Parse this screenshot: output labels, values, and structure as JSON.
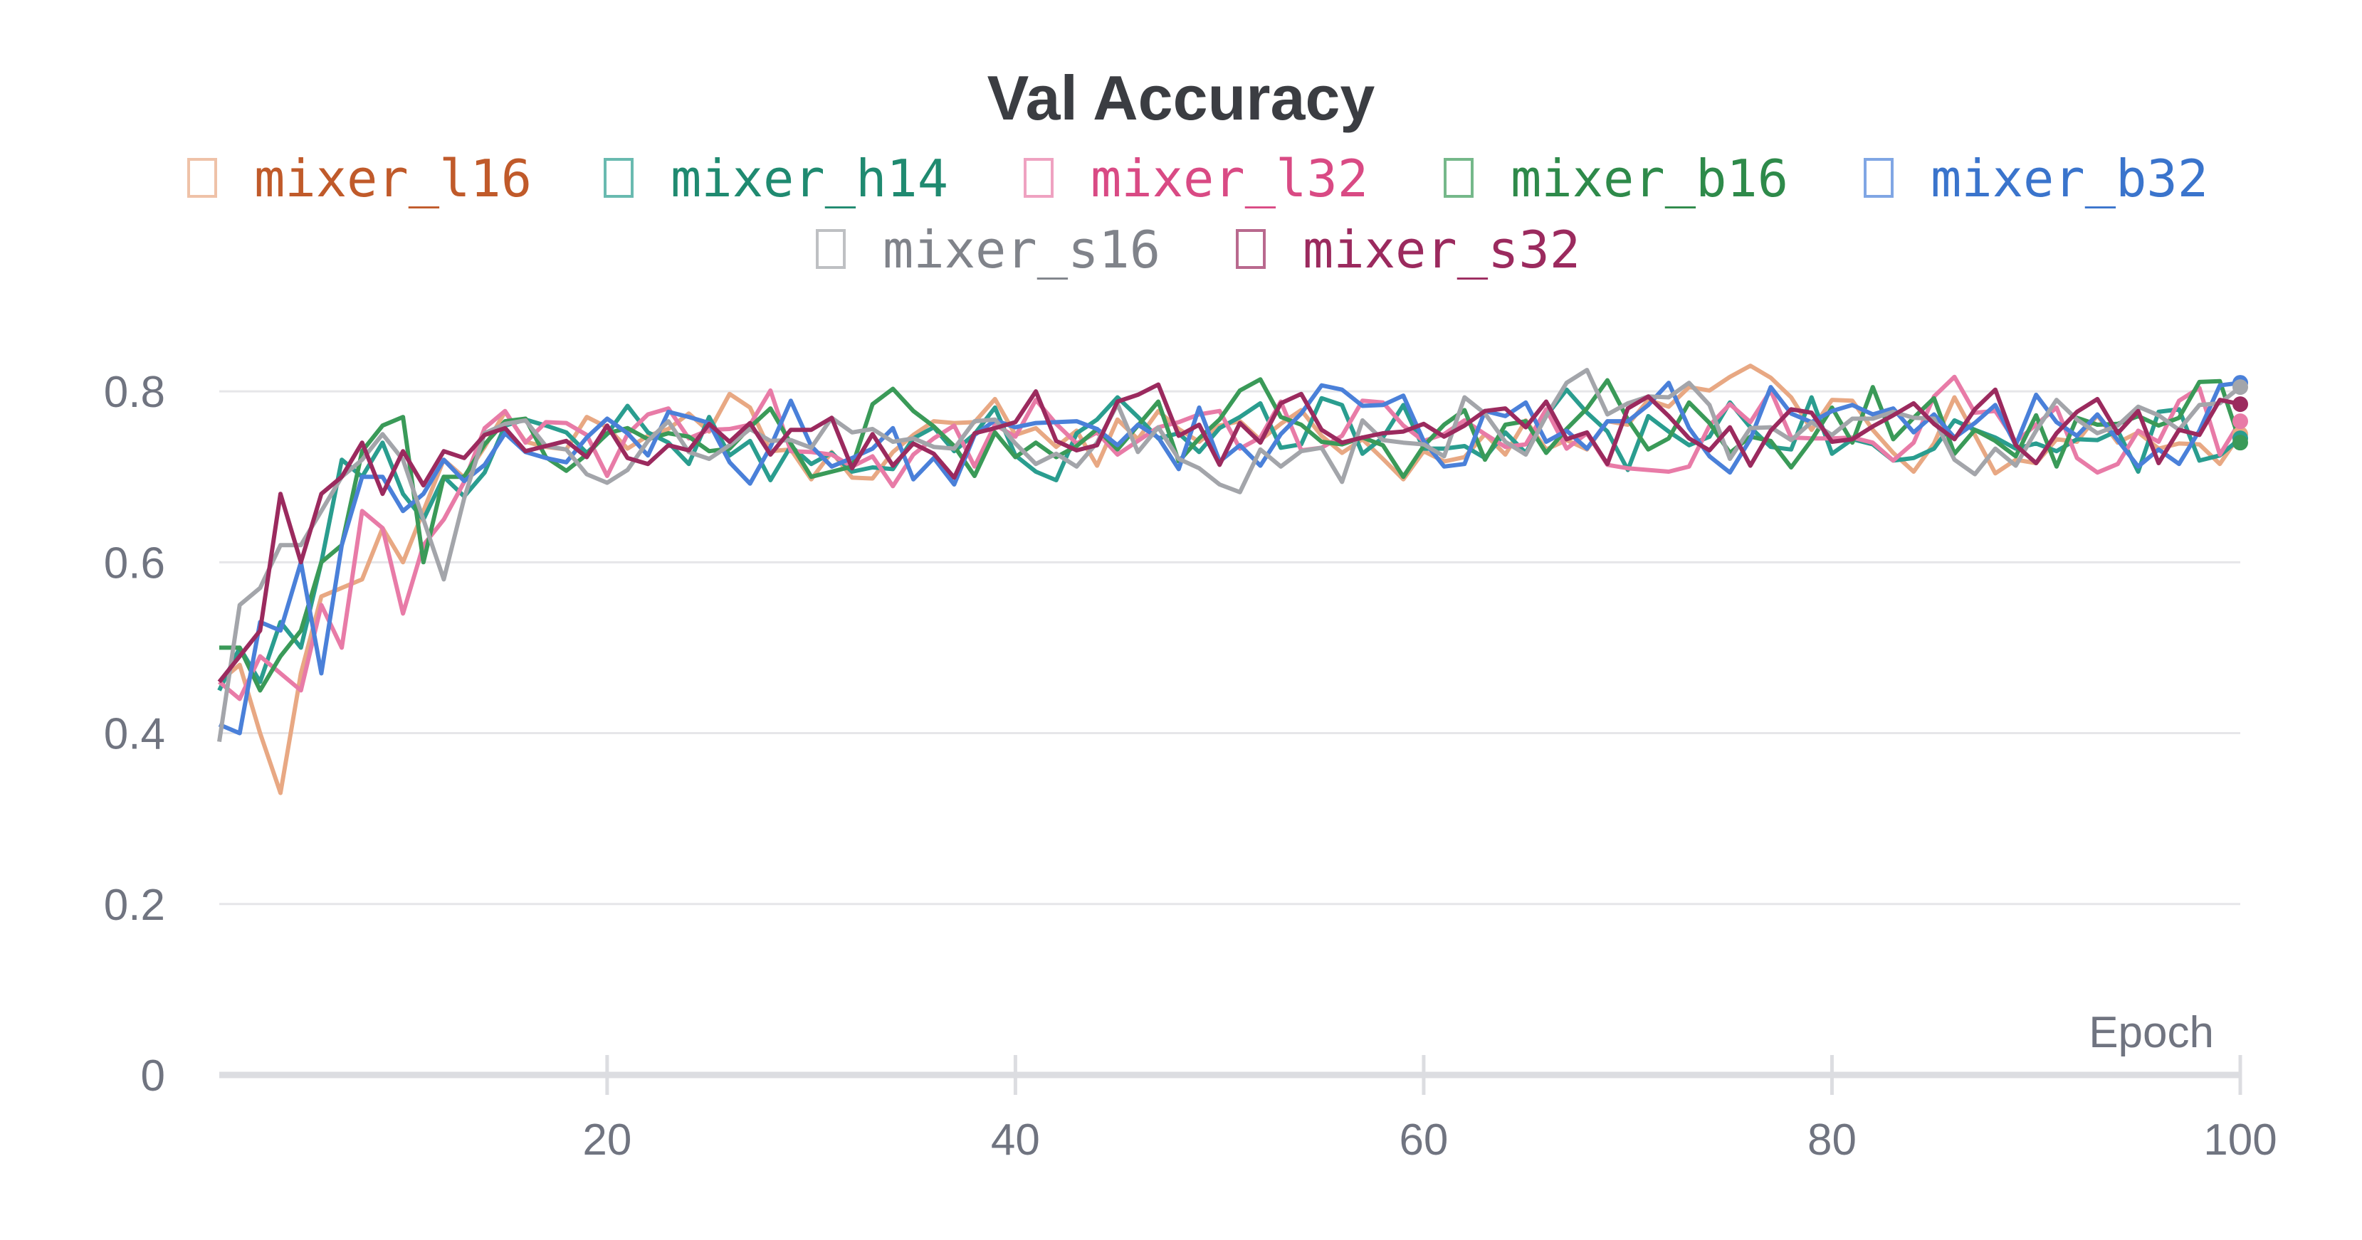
{
  "chart_data": {
    "type": "line",
    "title": "Val Accuracy",
    "xlabel": "Epoch",
    "ylabel": "",
    "xlim": [
      1,
      100
    ],
    "ylim": [
      0,
      0.9
    ],
    "x_ticks": [
      20,
      40,
      60,
      80,
      100
    ],
    "y_ticks": [
      0,
      0.2,
      0.4,
      0.6,
      0.8
    ],
    "y_tick_labels": [
      "0",
      "0.2",
      "0.4",
      "0.6",
      "0.8"
    ],
    "grid": true,
    "legend_position": "top",
    "series": [
      {
        "name": "mixer_l16",
        "color": "#e8a883",
        "text_color": "#c05a2a",
        "start": [
          0.46,
          0.48,
          0.4,
          0.33,
          0.47,
          0.56,
          0.57,
          0.58,
          0.64,
          0.6,
          0.66,
          0.72
        ],
        "final": 0.75
      },
      {
        "name": "mixer_h14",
        "color": "#2a9d8f",
        "text_color": "#1f8a70",
        "start": [
          0.45,
          0.5,
          0.46,
          0.53,
          0.5,
          0.6,
          0.72,
          0.7,
          0.74,
          0.68,
          0.65,
          0.7
        ],
        "final": 0.745
      },
      {
        "name": "mixer_l32",
        "color": "#e87ba7",
        "text_color": "#d94a84",
        "start": [
          0.46,
          0.44,
          0.49,
          0.47,
          0.45,
          0.55,
          0.5,
          0.66,
          0.64,
          0.54,
          0.62,
          0.65
        ],
        "final": 0.765
      },
      {
        "name": "mixer_b16",
        "color": "#3a9a58",
        "text_color": "#2e8a4a",
        "start": [
          0.5,
          0.5,
          0.45,
          0.49,
          0.52,
          0.6,
          0.62,
          0.73,
          0.76,
          0.77,
          0.6,
          0.7
        ],
        "final": 0.74
      },
      {
        "name": "mixer_b32",
        "color": "#4a80d9",
        "text_color": "#3a74cc",
        "start": [
          0.41,
          0.4,
          0.53,
          0.52,
          0.6,
          0.47,
          0.62,
          0.7,
          0.7,
          0.66,
          0.68,
          0.72
        ],
        "final": 0.81
      },
      {
        "name": "mixer_s16",
        "color": "#a3a5aa",
        "text_color": "#80838a",
        "start": [
          0.39,
          0.55,
          0.57,
          0.62,
          0.62,
          0.66,
          0.7,
          0.72,
          0.75,
          0.72,
          0.65,
          0.58
        ],
        "final": 0.805
      },
      {
        "name": "mixer_s32",
        "color": "#9b2a5e",
        "text_color": "#9b2a5e",
        "start": [
          0.46,
          0.49,
          0.52,
          0.68,
          0.6,
          0.68,
          0.7,
          0.74,
          0.68,
          0.73,
          0.69,
          0.73
        ],
        "final": 0.785
      }
    ]
  }
}
